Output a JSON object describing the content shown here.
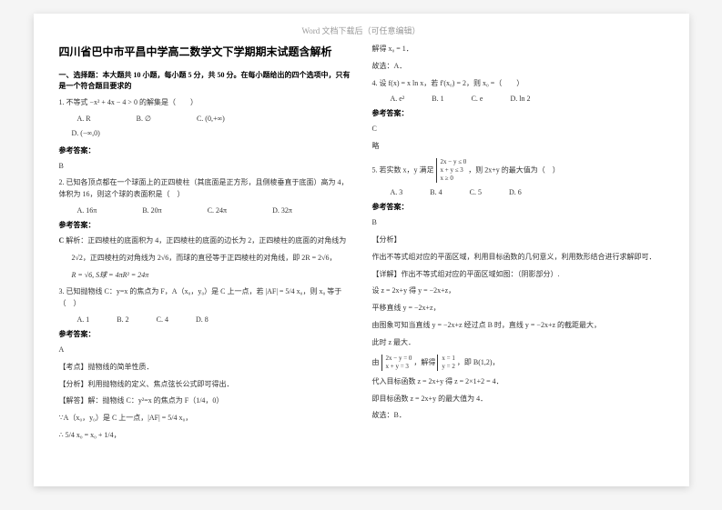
{
  "header_note": "Word 文档下载后（可任意编辑）",
  "title": "四川省巴中市平昌中学高二数学文下学期期末试题含解析",
  "section1_head": "一、选择题：本大题共 10 小题，每小题 5 分，共 50 分。在每小题给出的四个选项中，只有是一个符合题目要求的",
  "q1": {
    "text": "1. 不等式 −x² + 4x − 4 > 0 的解集是（　　）",
    "optA": "A. R",
    "optB": "B. ∅",
    "optC": "C. (0,+∞)",
    "optD": "D. (−∞,0)"
  },
  "ans_label": "参考答案：",
  "q1_ans": "B",
  "q2": {
    "text": "2. 已知各顶点都在一个球面上的正四棱柱（其底面是正方形，且侧棱垂直于底面）高为 4，体积为 16，则这个球的表面积是（　）",
    "optA": "A. 16π",
    "optB": "B. 20π",
    "optC": "C. 24π",
    "optD": "D. 32π"
  },
  "q2_ans_letter": "C",
  "q2_explain1": "解析：正四棱柱的底面积为 4，正四棱柱的底面的边长为 2，正四棱柱的底面的对角线为",
  "q2_explain2": "2√2，正四棱柱的对角线为 2√6，而球的直径等于正四棱柱的对角线，即 2R = 2√6，",
  "q2_explain3": "R = √6, S球 = 4πR² = 24π",
  "q3": {
    "text": "3. 已知抛物线 C：y=x 的焦点为 F，A（x₀，y₀）是 C 上一点，若 |AF| = 5/4 x₀，则 x₀ 等于（　）",
    "optA": "A. 1",
    "optB": "B. 2",
    "optC": "C. 4",
    "optD": "D. 8"
  },
  "q3_ans": "A",
  "q3_point": "【考点】抛物线的简单性质．",
  "q3_analysis": "【分析】利用抛物线的定义、焦点弦长公式即可得出．",
  "q3_solve1": "【解答】解：抛物线 C：y²=x 的焦点为 F（1/4，0）",
  "q3_solve2": "∵A（x₀，y₀）是 C 上一点，|AF| = 5/4 x₀，",
  "q3_solve3": "∴ 5/4 x₀ = x₀ + 1/4，",
  "right": {
    "r1": "解得 x₀ = 1．",
    "r2": "故选：A．",
    "q4_text": "4. 设 f(x) = x ln x，若 f'(x₀) = 2，则 x₀ =（　　）",
    "q4_optA": "A. e²",
    "q4_optB": "B. 1",
    "q4_optC": "C. e",
    "q4_optD": "D. ln 2",
    "q4_ans": "C",
    "q4_note": "略",
    "q5_intro": "5. 若实数 x，y 满足",
    "q5_c1": "2x − y ≤ 0",
    "q5_c2": "x + y ≤ 3",
    "q5_c3": "x ≥ 0",
    "q5_tail": "，则 2x+y 的最大值为（　）",
    "q5_optA": "A. 3",
    "q5_optB": "B. 4",
    "q5_optC": "C. 5",
    "q5_optD": "D. 6",
    "q5_ans": "B",
    "q5_analysis_label": "【分析】",
    "q5_analysis": "作出不等式组对应的平面区域，利用目标函数的几何意义，利用数形结合进行求解即可．",
    "q5_detail_label": "【详解】作出不等式组对应的平面区域如图：（阴影部分）.",
    "q5_s1": "设 z = 2x+y 得 y = −2x+z，",
    "q5_s2": "平移直线 y = −2x+z，",
    "q5_s3": "由图象可知当直线 y = −2x+z 经过点 B 时，直线 y = −2x+z 的截距最大，",
    "q5_s4": "此时 z 最大．",
    "q5_s5_intro": "由",
    "q5_s5_c1": "2x − y = 0",
    "q5_s5_c2": "x + y = 3",
    "q5_s5_mid": "，解得",
    "q5_s5_r1": "x = 1",
    "q5_s5_r2": "y = 2",
    "q5_s5_tail": "，即 B(1,2)，",
    "q5_s6": "代入目标函数 z = 2x+y 得 z = 2×1+2 = 4．",
    "q5_s7": "即目标函数 z = 2x+y 的最大值为 4．",
    "q5_s8": "故选：B．"
  }
}
